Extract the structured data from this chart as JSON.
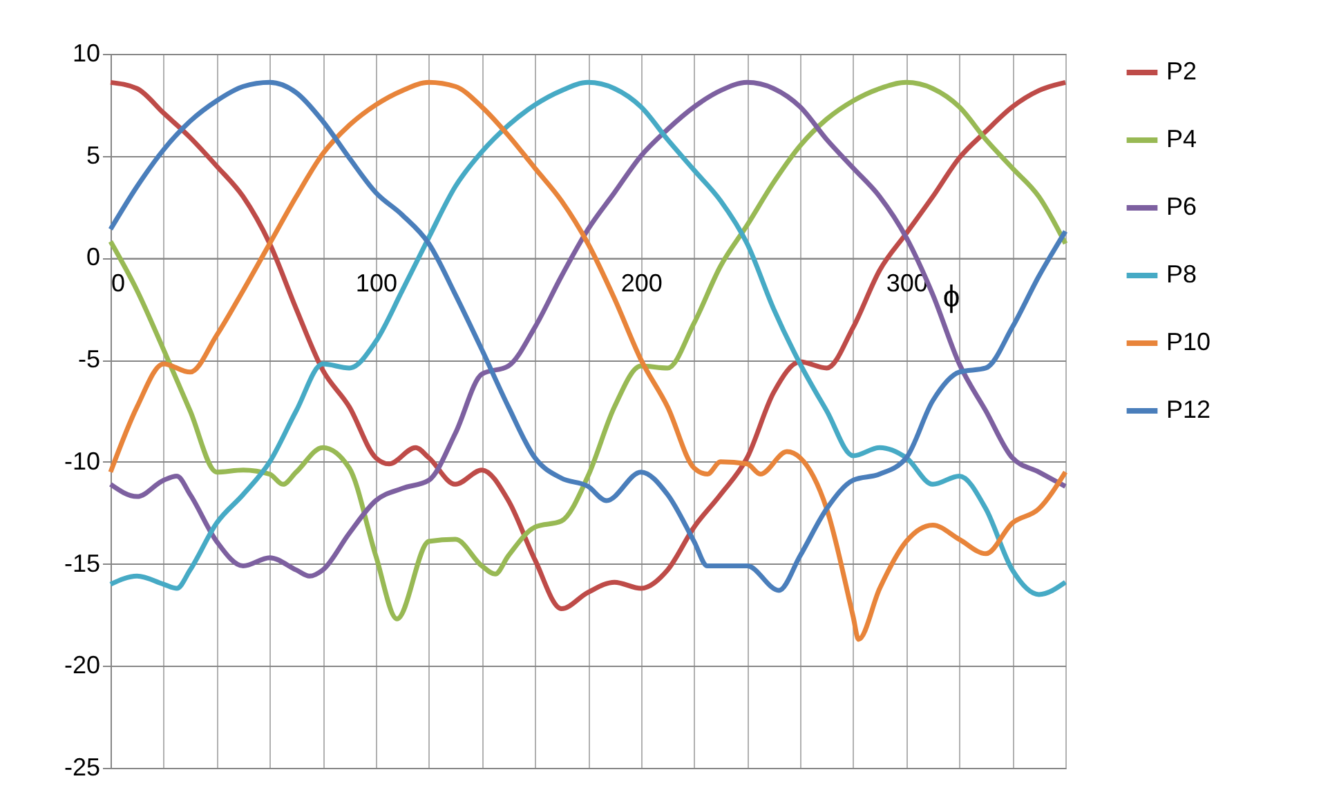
{
  "chart_data": {
    "type": "line",
    "xlabel": "ϕ",
    "xlim": [
      0,
      360
    ],
    "ylim": [
      -25,
      10
    ],
    "xticks": [
      0,
      {
        "value": 20,
        "label": null
      },
      {
        "value": 40,
        "label": null
      },
      {
        "value": 60,
        "label": null
      },
      {
        "value": 80,
        "label": null
      },
      100,
      {
        "value": 120,
        "label": null
      },
      {
        "value": 140,
        "label": null
      },
      {
        "value": 160,
        "label": null
      },
      {
        "value": 180,
        "label": null
      },
      200,
      {
        "value": 220,
        "label": null
      },
      {
        "value": 240,
        "label": null
      },
      {
        "value": 260,
        "label": null
      },
      {
        "value": 280,
        "label": null
      },
      300,
      {
        "value": 320,
        "label": null
      },
      {
        "value": 340,
        "label": null
      },
      {
        "value": 360,
        "label": null
      }
    ],
    "yticks": [
      -25,
      -20,
      -15,
      -10,
      -5,
      0,
      5,
      10
    ],
    "grid": true,
    "legend": "right",
    "line_style": "solid",
    "series": [
      {
        "name": "P2",
        "color": "#be4b48",
        "x": [
          0,
          10,
          20,
          30,
          40,
          50,
          60,
          70,
          80,
          90,
          100,
          105,
          115,
          120,
          130,
          140,
          150,
          160,
          170,
          180,
          190,
          200,
          210,
          220,
          230,
          240,
          250,
          260,
          270,
          280,
          290,
          300,
          310,
          320,
          330,
          340,
          350,
          360
        ],
        "values": [
          8.6,
          8.3,
          7.1,
          5.9,
          4.5,
          3.0,
          0.7,
          -2.5,
          -5.5,
          -7.3,
          -9.8,
          -10.1,
          -9.3,
          -9.8,
          -11.1,
          -10.4,
          -11.9,
          -14.8,
          -17.2,
          -16.4,
          -15.9,
          -16.2,
          -15.3,
          -13.2,
          -11.6,
          -9.8,
          -6.6,
          -5.1,
          -5.4,
          -3.4,
          -0.6,
          1.2,
          3.0,
          4.9,
          6.2,
          7.4,
          8.2,
          8.6
        ]
      },
      {
        "name": "P4",
        "color": "#98b954",
        "x": [
          0,
          10,
          20,
          30,
          40,
          50,
          60,
          65,
          70,
          80,
          90,
          100,
          108,
          120,
          130,
          140,
          145,
          150,
          160,
          170,
          180,
          190,
          200,
          210,
          220,
          230,
          240,
          250,
          260,
          270,
          280,
          290,
          300,
          310,
          320,
          330,
          340,
          350,
          360
        ],
        "values": [
          0.8,
          -1.6,
          -4.5,
          -7.5,
          -10.5,
          -10.4,
          -10.6,
          -11.1,
          -10.5,
          -9.3,
          -10.3,
          -14.6,
          -17.7,
          -13.9,
          -13.8,
          -15.1,
          -15.5,
          -14.6,
          -13.2,
          -12.9,
          -10.7,
          -7.3,
          -5.3,
          -5.4,
          -3.2,
          -0.4,
          1.6,
          3.7,
          5.5,
          6.8,
          7.7,
          8.3,
          8.6,
          8.3,
          7.4,
          5.8,
          4.4,
          3.0,
          0.7
        ]
      },
      {
        "name": "P6",
        "color": "#7d60a0",
        "x": [
          0,
          10,
          20,
          25,
          30,
          40,
          50,
          60,
          70,
          75,
          80,
          90,
          100,
          110,
          120,
          130,
          140,
          150,
          160,
          170,
          180,
          190,
          200,
          210,
          220,
          230,
          240,
          250,
          260,
          270,
          280,
          290,
          300,
          310,
          320,
          330,
          340,
          350,
          360
        ],
        "values": [
          -11.1,
          -11.7,
          -10.9,
          -10.7,
          -11.6,
          -13.9,
          -15.1,
          -14.7,
          -15.3,
          -15.6,
          -15.3,
          -13.5,
          -11.9,
          -11.3,
          -10.9,
          -8.6,
          -5.7,
          -5.3,
          -3.4,
          -0.9,
          1.4,
          3.2,
          5.0,
          6.3,
          7.4,
          8.2,
          8.6,
          8.3,
          7.4,
          5.8,
          4.4,
          3.0,
          1.0,
          -1.8,
          -5.2,
          -7.5,
          -9.8,
          -10.5,
          -11.2
        ]
      },
      {
        "name": "P8",
        "color": "#46aac5",
        "x": [
          0,
          10,
          20,
          25,
          30,
          40,
          50,
          60,
          70,
          80,
          90,
          100,
          110,
          120,
          130,
          140,
          150,
          160,
          170,
          180,
          190,
          200,
          210,
          220,
          230,
          240,
          250,
          260,
          270,
          280,
          290,
          300,
          310,
          320,
          330,
          340,
          350,
          360
        ],
        "values": [
          -16.0,
          -15.6,
          -16.0,
          -16.2,
          -15.3,
          -13.0,
          -11.6,
          -10.0,
          -7.5,
          -5.2,
          -5.4,
          -4.1,
          -1.6,
          1.0,
          3.5,
          5.2,
          6.5,
          7.5,
          8.2,
          8.6,
          8.3,
          7.4,
          5.8,
          4.3,
          2.8,
          0.7,
          -2.5,
          -5.2,
          -7.5,
          -9.7,
          -9.3,
          -9.8,
          -11.1,
          -10.7,
          -12.3,
          -15.3,
          -16.5,
          -15.9
        ]
      },
      {
        "name": "P10",
        "color": "#e8843a",
        "x": [
          0,
          10,
          20,
          30,
          40,
          50,
          60,
          70,
          80,
          90,
          100,
          110,
          120,
          130,
          140,
          150,
          160,
          170,
          180,
          190,
          200,
          210,
          220,
          225,
          230,
          240,
          245,
          255,
          260,
          270,
          280,
          282,
          290,
          300,
          310,
          320,
          330,
          340,
          350,
          360
        ],
        "values": [
          -10.5,
          -7.3,
          -5.2,
          -5.6,
          -3.8,
          -1.6,
          0.7,
          3.0,
          5.1,
          6.5,
          7.5,
          8.2,
          8.6,
          8.4,
          7.4,
          6.0,
          4.4,
          2.8,
          0.7,
          -2.0,
          -5.0,
          -7.3,
          -10.3,
          -10.6,
          -10.0,
          -10.1,
          -10.6,
          -9.5,
          -9.8,
          -12.3,
          -17.6,
          -18.7,
          -16.2,
          -13.9,
          -13.1,
          -13.8,
          -14.5,
          -13.0,
          -12.3,
          -10.5
        ]
      },
      {
        "name": "P12",
        "color": "#4a7ebb",
        "x": [
          0,
          10,
          20,
          30,
          40,
          50,
          60,
          70,
          80,
          90,
          100,
          110,
          120,
          130,
          140,
          150,
          160,
          170,
          180,
          187,
          200,
          210,
          220,
          225,
          230,
          240,
          252,
          260,
          270,
          280,
          290,
          300,
          310,
          320,
          330,
          340,
          350,
          360
        ],
        "values": [
          1.4,
          3.5,
          5.3,
          6.7,
          7.7,
          8.4,
          8.6,
          8.1,
          6.7,
          4.9,
          3.2,
          2.1,
          0.7,
          -1.8,
          -4.5,
          -7.3,
          -9.8,
          -10.8,
          -11.2,
          -11.9,
          -10.5,
          -11.6,
          -13.9,
          -15.1,
          -15.1,
          -15.1,
          -16.3,
          -14.6,
          -12.3,
          -10.9,
          -10.6,
          -9.8,
          -7.0,
          -5.6,
          -5.4,
          -3.4,
          -0.9,
          1.3
        ]
      }
    ]
  }
}
